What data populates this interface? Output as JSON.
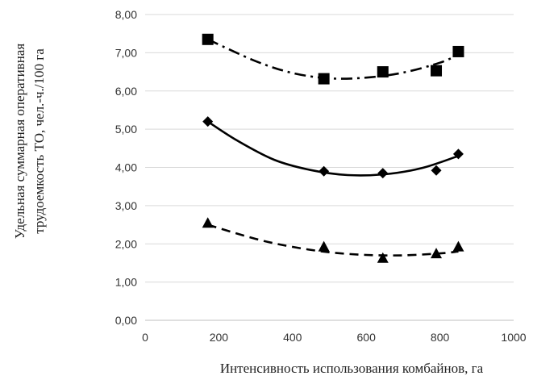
{
  "chart_data": {
    "type": "scatter",
    "xlabel": "Интенсивность использования комбайнов, га",
    "ylabel_lines": [
      "Удельная суммарная оперативная",
      "трудоемкость ТО, чел.-ч./100 га"
    ],
    "xlim": [
      0,
      1000
    ],
    "ylim": [
      0,
      8
    ],
    "x_ticks": [
      "0",
      "200",
      "400",
      "600",
      "800",
      "1000"
    ],
    "y_ticks": [
      "0,00",
      "1,00",
      "2,00",
      "3,00",
      "4,00",
      "5,00",
      "6,00",
      "7,00",
      "8,00"
    ],
    "grid": "horizontal",
    "legend": "none",
    "series": [
      {
        "marker": "square",
        "line_style": "dash-dot",
        "points": [
          [
            170,
            7.35
          ],
          [
            485,
            6.32
          ],
          [
            645,
            6.5
          ],
          [
            790,
            6.53
          ],
          [
            850,
            7.03
          ]
        ],
        "trend": [
          [
            170,
            7.35
          ],
          [
            300,
            6.78
          ],
          [
            400,
            6.47
          ],
          [
            500,
            6.33
          ],
          [
            600,
            6.35
          ],
          [
            700,
            6.48
          ],
          [
            800,
            6.74
          ],
          [
            850,
            6.95
          ]
        ]
      },
      {
        "marker": "diamond",
        "line_style": "solid",
        "points": [
          [
            170,
            5.2
          ],
          [
            485,
            3.9
          ],
          [
            645,
            3.85
          ],
          [
            790,
            3.92
          ],
          [
            850,
            4.35
          ]
        ],
        "trend": [
          [
            170,
            5.2
          ],
          [
            250,
            4.7
          ],
          [
            350,
            4.2
          ],
          [
            450,
            3.93
          ],
          [
            550,
            3.8
          ],
          [
            650,
            3.82
          ],
          [
            750,
            3.98
          ],
          [
            850,
            4.3
          ]
        ]
      },
      {
        "marker": "triangle",
        "line_style": "dashed",
        "points": [
          [
            170,
            2.55
          ],
          [
            485,
            1.93
          ],
          [
            645,
            1.63
          ],
          [
            790,
            1.75
          ],
          [
            850,
            1.93
          ]
        ],
        "trend": [
          [
            170,
            2.5
          ],
          [
            300,
            2.13
          ],
          [
            400,
            1.92
          ],
          [
            500,
            1.78
          ],
          [
            600,
            1.71
          ],
          [
            700,
            1.7
          ],
          [
            800,
            1.75
          ],
          [
            850,
            1.8
          ]
        ]
      }
    ]
  }
}
